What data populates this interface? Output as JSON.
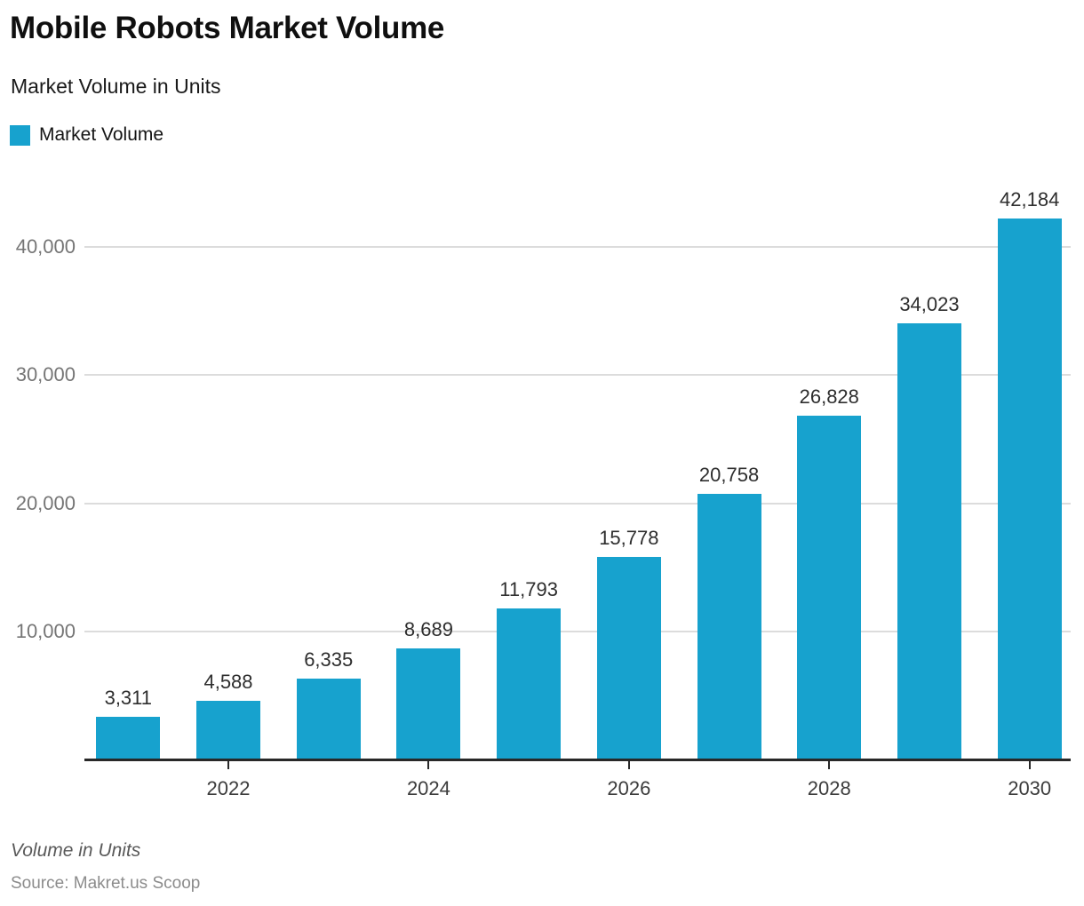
{
  "header": {
    "title": "Mobile Robots Market Volume",
    "subtitle": "Market Volume in Units",
    "legend": [
      {
        "label": "Market Volume",
        "color": "#17a2ce"
      }
    ]
  },
  "chart_data": {
    "type": "bar",
    "title": "Mobile Robots Market Volume",
    "subtitle": "Market Volume in Units",
    "series_name": "Market Volume",
    "categories": [
      "2021",
      "2022",
      "2023",
      "2024",
      "2025",
      "2026",
      "2027",
      "2028",
      "2029",
      "2030"
    ],
    "values": [
      3311,
      4588,
      6335,
      8689,
      11793,
      15778,
      20758,
      26828,
      34023,
      42184
    ],
    "data_labels": [
      "3,311",
      "4,588",
      "6,335",
      "8,689",
      "11,793",
      "15,778",
      "20,758",
      "26,828",
      "34,023",
      "42,184"
    ],
    "bar_color": "#17a2ce",
    "ylabel": "",
    "xlabel": "",
    "ylim": [
      0,
      43000
    ],
    "yticks": [
      {
        "value": 10000,
        "label": "10,000"
      },
      {
        "value": 20000,
        "label": "20,000"
      },
      {
        "value": 30000,
        "label": "30,000"
      },
      {
        "value": 40000,
        "label": "40,000"
      }
    ],
    "xtick_labels": [
      "2022",
      "2024",
      "2026",
      "2028",
      "2030"
    ],
    "grid": "horizontal",
    "legend_position": "top-left"
  },
  "footer": {
    "note": "Volume in Units",
    "source": "Source: Makret.us Scoop"
  }
}
